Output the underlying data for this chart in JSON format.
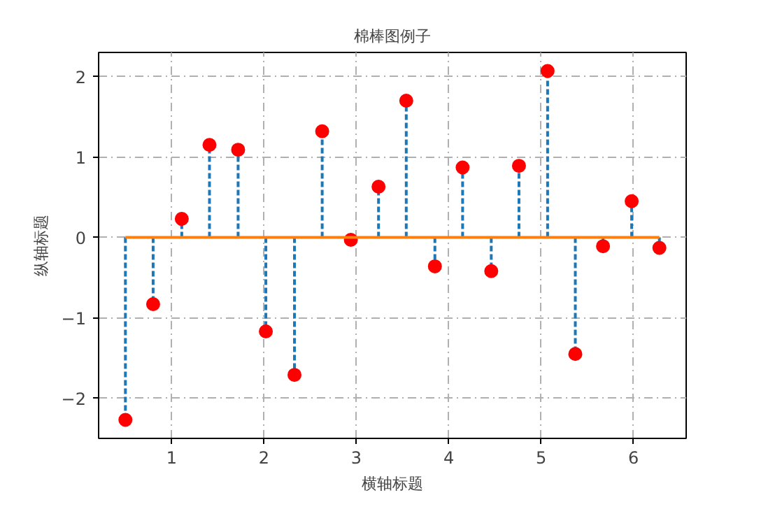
{
  "chart_data": {
    "type": "lollipop",
    "title": "棉棒图例子",
    "xlabel": "横轴标题",
    "ylabel": "纵轴标题",
    "x": [
      0.5,
      0.8,
      1.11,
      1.41,
      1.72,
      2.02,
      2.33,
      2.63,
      2.94,
      3.24,
      3.54,
      3.85,
      4.15,
      4.46,
      4.76,
      5.07,
      5.37,
      5.67,
      5.98,
      6.28
    ],
    "series": [
      {
        "color": "#ff0000",
        "marker": "circle",
        "line_style": "dashed",
        "values": [
          -2.27,
          -0.83,
          0.23,
          1.15,
          1.09,
          -1.17,
          -1.71,
          1.32,
          -0.03,
          0.63,
          1.7,
          -0.36,
          0.87,
          -0.42,
          0.89,
          2.07,
          -1.45,
          -0.11,
          0.45,
          -0.13
        ]
      },
      {
        "type": "line",
        "color": "#ff7f0e",
        "marker": "none",
        "line_style": "solid",
        "x": [
          0.5,
          6.28
        ],
        "values": [
          0,
          0
        ]
      }
    ],
    "xlim": [
      0.21,
      6.57
    ],
    "ylim": [
      -2.5,
      2.3
    ],
    "xticks": [
      1,
      2,
      3,
      4,
      5,
      6
    ],
    "yticks": [
      -2,
      -1,
      0,
      1,
      2
    ],
    "grid": true
  }
}
